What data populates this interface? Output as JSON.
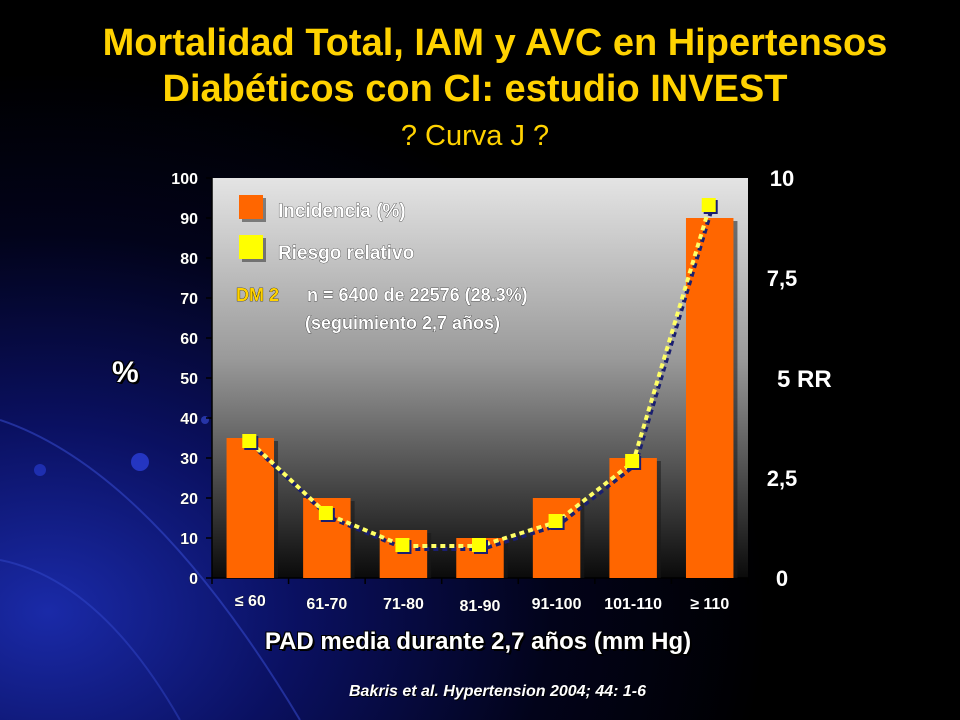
{
  "title_line1": "Mortalidad Total, IAM y AVC en Hipertensos",
  "title_line2": "Diabéticos con CI: estudio INVEST",
  "subtitle": "? Curva J ?",
  "source": "Bakris et al. Hypertension 2004; 44: 1-6",
  "annotation": {
    "dm_tag": "DM 2",
    "line1": "n = 6400 de 22576 (28.3%)",
    "line2": "(seguimiento 2,7 años)"
  },
  "colors": {
    "bar": "#ff6600",
    "rr_marker": "#ffff00",
    "rr_line": "#ffff66",
    "accent": "#ffd200",
    "title": "#ffd200"
  },
  "chart_data": {
    "type": "bar",
    "title": "Mortalidad Total, IAM y AVC en Hipertensos Diabéticos con CI: estudio INVEST",
    "xlabel": "PAD media durante 2,7 años (mm Hg)",
    "ylabel": "%",
    "ylabel_right": "5  RR",
    "categories": [
      "≤ 60",
      "61-70",
      "71-80",
      "81-90",
      "91-100",
      "101-110",
      "≥ 110"
    ],
    "y_ticks": [
      "0",
      "10",
      "20",
      "30",
      "40",
      "50",
      "60",
      "70",
      "80",
      "90",
      "100"
    ],
    "y2_ticks": [
      "0",
      "2,5",
      "7,5",
      "10"
    ],
    "ylim": [
      0,
      100
    ],
    "y2lim": [
      0,
      10
    ],
    "series": [
      {
        "name": "Incidencia (%)",
        "type": "bar",
        "axis": "left",
        "values": [
          35,
          20,
          12,
          10,
          20,
          30,
          90
        ]
      },
      {
        "name": "Riesgo relativo",
        "type": "line",
        "axis": "right",
        "values": [
          3.4,
          1.6,
          0.8,
          0.8,
          1.4,
          2.9,
          9.3
        ]
      }
    ],
    "legend_position": "top-left",
    "grid": false
  }
}
